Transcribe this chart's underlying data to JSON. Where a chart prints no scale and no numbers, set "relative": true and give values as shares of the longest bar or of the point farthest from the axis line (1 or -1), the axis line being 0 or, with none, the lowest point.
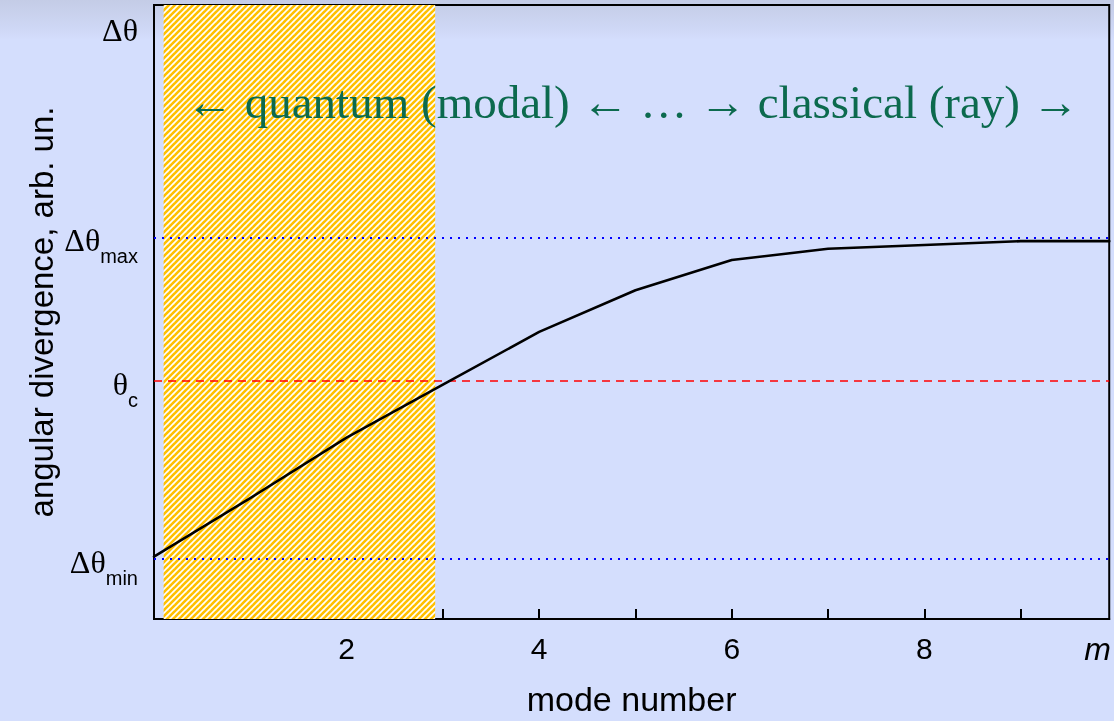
{
  "chart_data": {
    "type": "line",
    "relative": true,
    "xlabel": "mode number",
    "ylabel": "angular divergence, arb. un.",
    "annotations": [
      "← quantum (modal) ← … → classical (ray) →",
      "Δθ"
    ],
    "x": [
      0,
      1,
      2,
      3,
      4,
      5,
      6,
      7,
      8,
      9,
      9.92
    ],
    "values": [
      0.165,
      0.32,
      0.48,
      0.62,
      0.76,
      0.87,
      0.95,
      0.98,
      0.99,
      1,
      1
    ],
    "color": "#000000",
    "marker": "none",
    "xlim": [
      0,
      9.92
    ],
    "xticks": [
      {
        "value": 1,
        "label": null
      },
      2,
      {
        "value": 3,
        "label": null
      },
      4,
      {
        "value": 5,
        "label": null
      },
      6,
      {
        "value": 7,
        "label": null
      },
      8,
      {
        "value": 9,
        "label": null
      },
      {
        "value": 9.8,
        "label": "m"
      }
    ],
    "ref_lines": [
      {
        "axis": "y",
        "value": 1.01,
        "label": "Δθ$_{max}$",
        "color": "#0000ff",
        "line_style": "dotted"
      },
      {
        "axis": "y",
        "value": 0.63,
        "label": "θ$_{c}$",
        "color": "#ff0000",
        "line_style": "dashed"
      },
      {
        "axis": "y",
        "value": 0.16,
        "label": "Δθ$_{min}$",
        "color": "#0000ff",
        "line_style": "dotted"
      }
    ],
    "bands": [
      {
        "axis": "x",
        "from": 0.1,
        "to": 2.92,
        "color": "#ffc000"
      }
    ]
  }
}
